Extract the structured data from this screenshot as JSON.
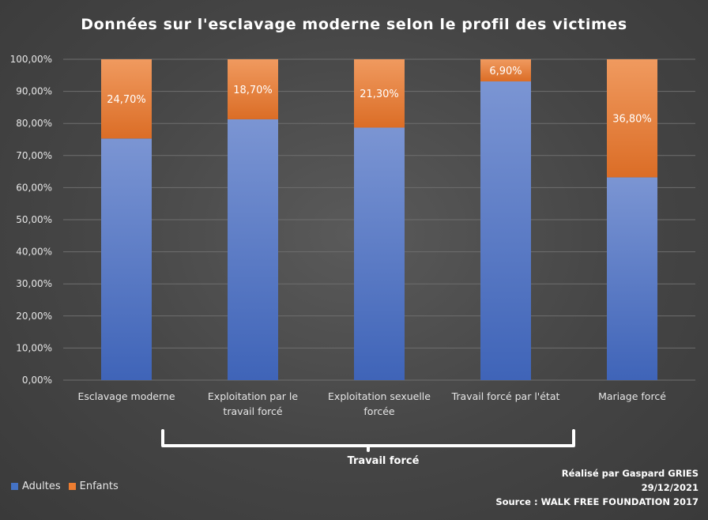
{
  "chart_data": {
    "type": "stacked-bar",
    "title": "Données sur l'esclavage moderne selon le profil des victimes",
    "categories": [
      [
        "Esclavage moderne"
      ],
      [
        "Exploitation par le",
        "travail forcé"
      ],
      [
        "Exploitation sexuelle",
        "forcée"
      ],
      [
        "Travail forcé par l'état"
      ],
      [
        "Mariage forcé"
      ]
    ],
    "series": [
      {
        "name": "Adultes",
        "color": "#4472c4",
        "values": [
          75.3,
          81.3,
          78.7,
          93.1,
          63.2
        ]
      },
      {
        "name": "Enfants",
        "color": "#ed7d31",
        "values": [
          24.7,
          18.7,
          21.3,
          6.9,
          36.8
        ]
      }
    ],
    "data_labels": [
      "24,70%",
      "18,70%",
      "21,30%",
      "6,90%",
      "36,80%"
    ],
    "yticks": [
      "0,00%",
      "10,00%",
      "20,00%",
      "30,00%",
      "40,00%",
      "50,00%",
      "60,00%",
      "70,00%",
      "80,00%",
      "90,00%",
      "100,00%"
    ],
    "ylim": [
      0,
      100
    ],
    "grid": true,
    "legend_position": "bottom-left",
    "group_bracket": {
      "label": "Travail forcé",
      "from_category": 1,
      "to_category": 3
    }
  },
  "credits": {
    "author": "Réalisé par Gaspard GRIES",
    "date": "29/12/2021",
    "source": "Source : WALK FREE FOUNDATION 2017"
  }
}
